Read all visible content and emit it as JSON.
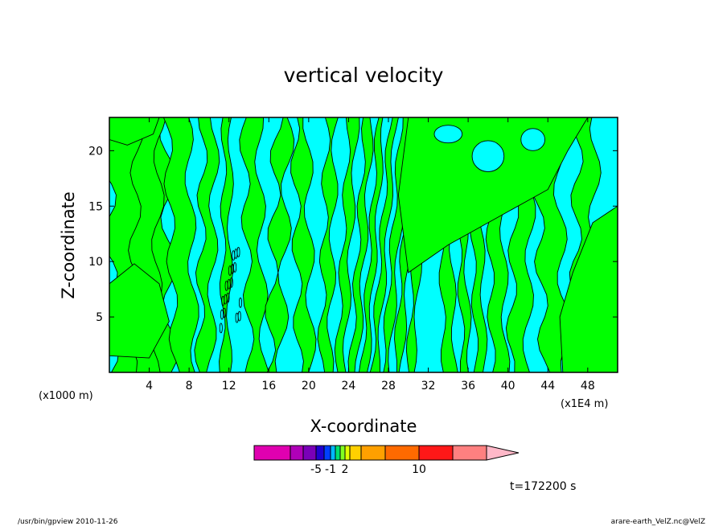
{
  "chart_data": {
    "type": "heatmap",
    "title": "vertical velocity",
    "xlabel": "X-coordinate",
    "ylabel": "Z-coordinate",
    "y_unit": "(x1000 m)",
    "x_unit": "(x1E4 m)",
    "xlim": [
      0,
      51
    ],
    "ylim": [
      0,
      23
    ],
    "x_ticks": [
      4,
      8,
      12,
      16,
      20,
      24,
      28,
      32,
      36,
      40,
      44,
      48
    ],
    "y_ticks": [
      5,
      10,
      15,
      20
    ],
    "time_label": "t=172200 s",
    "colorbar": {
      "colors": [
        "#e000b0",
        "#b000b8",
        "#7a00b8",
        "#2000d0",
        "#0040ff",
        "#00b8ff",
        "#00e070",
        "#80ff20",
        "#e0ff00",
        "#ffd000",
        "#ffa000",
        "#ff6a00",
        "#ff1818",
        "#ff8080",
        "#ffb8c8"
      ],
      "labels": [
        {
          "text": "-5",
          "index": 3
        },
        {
          "text": "-1",
          "index": 5
        },
        {
          "text": "2",
          "index": 8
        },
        {
          "text": "10",
          "index": 12
        }
      ]
    },
    "field_colors": {
      "positive": "#00ff00",
      "negative": "#00ffff"
    },
    "grid": false,
    "legend": "colorbar-bottom"
  },
  "footer": {
    "left": "/usr/bin/gpview  2010-11-26",
    "right": "arare-earth_VelZ.nc@VelZ"
  }
}
